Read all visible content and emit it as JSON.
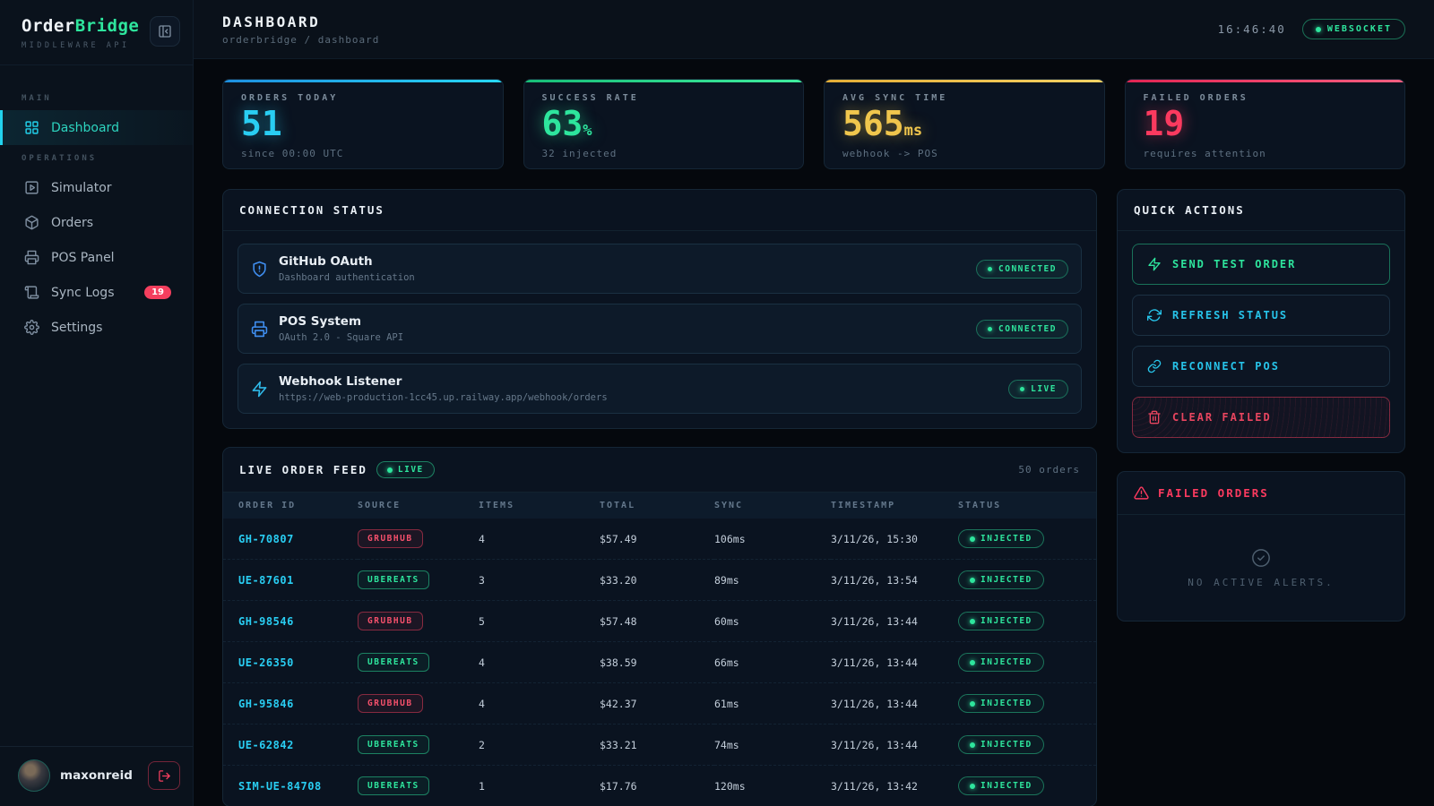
{
  "colors": {
    "accent_cyan": "#29cdf2",
    "accent_green": "#2ee59d",
    "accent_yellow": "#f0c64d",
    "accent_red": "#fb3a5f",
    "icon_blue": "#3f8ef0",
    "badge_red": "#f43f5e"
  },
  "sidebar": {
    "logo": {
      "part1": "Order",
      "part2": "Bridge",
      "subtitle": "MIDDLEWARE API"
    },
    "sections": [
      {
        "label": "MAIN",
        "items": [
          {
            "label": "Dashboard"
          }
        ]
      },
      {
        "label": "OPERATIONS",
        "items": [
          {
            "label": "Simulator"
          },
          {
            "label": "Orders"
          },
          {
            "label": "POS Panel"
          },
          {
            "label": "Sync Logs",
            "badge": "19"
          },
          {
            "label": "Settings"
          }
        ]
      }
    ],
    "user": {
      "name": "maxonreid"
    }
  },
  "header": {
    "title": "DASHBOARD",
    "breadcrumb": "orderbridge / dashboard",
    "time": "16:46:40",
    "ws_badge": "WEBSOCKET"
  },
  "stats": [
    {
      "label": "ORDERS TODAY",
      "value": "51",
      "suffix": "",
      "sub": "since 00:00 UTC",
      "accent": "#29cdf2"
    },
    {
      "label": "SUCCESS RATE",
      "value": "63",
      "suffix": "%",
      "sub": "32 injected",
      "accent": "#2ee59d"
    },
    {
      "label": "AVG SYNC TIME",
      "value": "565",
      "suffix": "ms",
      "sub": "webhook -> POS",
      "accent": "#f0c64d"
    },
    {
      "label": "FAILED ORDERS",
      "value": "19",
      "suffix": "",
      "sub": "requires attention",
      "accent": "#fb3a5f"
    }
  ],
  "connection_status": {
    "title": "CONNECTION STATUS",
    "rows": [
      {
        "name": "GitHub OAuth",
        "sub": "Dashboard authentication",
        "status": "CONNECTED",
        "icon": "shield-icon"
      },
      {
        "name": "POS System",
        "sub": "OAuth 2.0 - Square API",
        "status": "CONNECTED",
        "icon": "printer-icon"
      },
      {
        "name": "Webhook Listener",
        "sub": "https://web-production-1cc45.up.railway.app/webhook/orders",
        "status": "LIVE",
        "icon": "zap-icon"
      }
    ]
  },
  "quick_actions": {
    "title": "QUICK ACTIONS",
    "buttons": [
      {
        "label": "SEND TEST ORDER",
        "icon": "zap-icon",
        "tone": "green"
      },
      {
        "label": "REFRESH STATUS",
        "icon": "refresh-icon",
        "tone": "cyan"
      },
      {
        "label": "RECONNECT POS",
        "icon": "link-icon",
        "tone": "cyan"
      },
      {
        "label": "CLEAR FAILED",
        "icon": "trash-icon",
        "tone": "red"
      }
    ]
  },
  "order_feed": {
    "title": "LIVE ORDER FEED",
    "live_badge": "LIVE",
    "count": "50 orders",
    "columns": [
      "ORDER ID",
      "SOURCE",
      "ITEMS",
      "TOTAL",
      "SYNC",
      "TIMESTAMP",
      "STATUS"
    ],
    "rows": [
      {
        "id": "GH-70807",
        "source": "GRUBHUB",
        "source_type": "grubhub",
        "items": "4",
        "total": "$57.49",
        "sync": "106ms",
        "timestamp": "3/11/26, 15:30",
        "status": "INJECTED"
      },
      {
        "id": "UE-87601",
        "source": "UBEREATS",
        "source_type": "ubereats",
        "items": "3",
        "total": "$33.20",
        "sync": "89ms",
        "timestamp": "3/11/26, 13:54",
        "status": "INJECTED"
      },
      {
        "id": "GH-98546",
        "source": "GRUBHUB",
        "source_type": "grubhub",
        "items": "5",
        "total": "$57.48",
        "sync": "60ms",
        "timestamp": "3/11/26, 13:44",
        "status": "INJECTED"
      },
      {
        "id": "UE-26350",
        "source": "UBEREATS",
        "source_type": "ubereats",
        "items": "4",
        "total": "$38.59",
        "sync": "66ms",
        "timestamp": "3/11/26, 13:44",
        "status": "INJECTED"
      },
      {
        "id": "GH-95846",
        "source": "GRUBHUB",
        "source_type": "grubhub",
        "items": "4",
        "total": "$42.37",
        "sync": "61ms",
        "timestamp": "3/11/26, 13:44",
        "status": "INJECTED"
      },
      {
        "id": "UE-62842",
        "source": "UBEREATS",
        "source_type": "ubereats",
        "items": "2",
        "total": "$33.21",
        "sync": "74ms",
        "timestamp": "3/11/26, 13:44",
        "status": "INJECTED"
      },
      {
        "id": "SIM-UE-84708",
        "source": "UBEREATS",
        "source_type": "ubereats",
        "items": "1",
        "total": "$17.76",
        "sync": "120ms",
        "timestamp": "3/11/26, 13:42",
        "status": "INJECTED"
      }
    ]
  },
  "failed_orders": {
    "title": "FAILED ORDERS",
    "empty_text": "NO ACTIVE ALERTS."
  }
}
